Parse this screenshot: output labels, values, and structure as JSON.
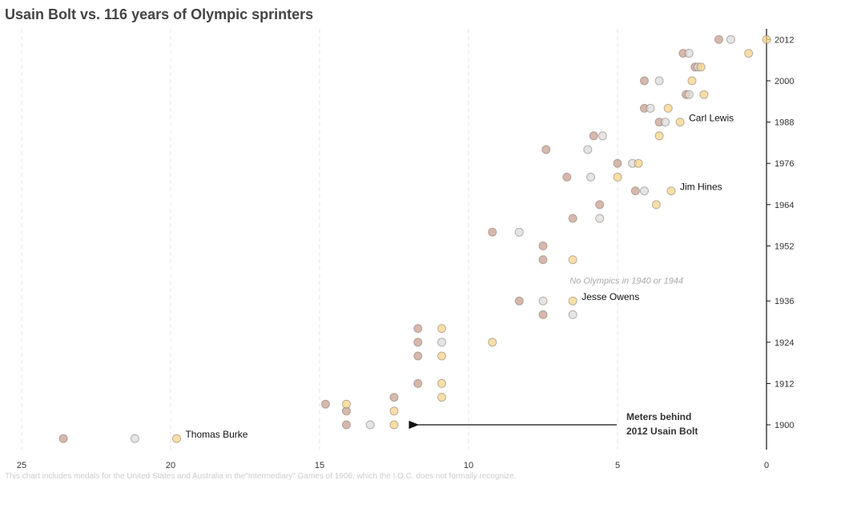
{
  "chart_data": {
    "type": "scatter",
    "title": "Usain Bolt vs. 116 years of Olympic sprinters",
    "xlabel": "",
    "ylabel": "",
    "x_axis": {
      "ticks": [
        25,
        20,
        15,
        10,
        5,
        0
      ],
      "range": [
        25.5,
        0
      ],
      "reversed": true
    },
    "y_axis": {
      "ticks": [
        1900,
        1912,
        1924,
        1936,
        1952,
        1964,
        1976,
        1988,
        2000,
        2012
      ],
      "range": [
        1894,
        2014
      ],
      "position": "right"
    },
    "grid": {
      "vertical": true,
      "horizontal": false
    },
    "colors": {
      "gold": "#f7d488",
      "silver": "#dcdcdc",
      "bronze": "#c9a090"
    },
    "points": [
      {
        "year": 1896,
        "meters": 23.6,
        "medal": "bronze"
      },
      {
        "year": 1896,
        "meters": 21.2,
        "medal": "silver"
      },
      {
        "year": 1896,
        "meters": 19.8,
        "medal": "gold"
      },
      {
        "year": 1900,
        "meters": 14.1,
        "medal": "bronze"
      },
      {
        "year": 1900,
        "meters": 13.3,
        "medal": "silver"
      },
      {
        "year": 1900,
        "meters": 12.5,
        "medal": "gold"
      },
      {
        "year": 1904,
        "meters": 14.1,
        "medal": "bronze"
      },
      {
        "year": 1904,
        "meters": 12.5,
        "medal": "gold"
      },
      {
        "year": 1906,
        "meters": 14.8,
        "medal": "bronze"
      },
      {
        "year": 1906,
        "meters": 14.1,
        "medal": "gold"
      },
      {
        "year": 1908,
        "meters": 12.5,
        "medal": "bronze"
      },
      {
        "year": 1908,
        "meters": 10.9,
        "medal": "gold"
      },
      {
        "year": 1912,
        "meters": 11.7,
        "medal": "bronze"
      },
      {
        "year": 1912,
        "meters": 10.9,
        "medal": "gold"
      },
      {
        "year": 1920,
        "meters": 11.7,
        "medal": "bronze"
      },
      {
        "year": 1920,
        "meters": 10.9,
        "medal": "gold"
      },
      {
        "year": 1924,
        "meters": 11.7,
        "medal": "bronze"
      },
      {
        "year": 1924,
        "meters": 10.9,
        "medal": "silver"
      },
      {
        "year": 1924,
        "meters": 9.2,
        "medal": "gold"
      },
      {
        "year": 1928,
        "meters": 11.7,
        "medal": "bronze"
      },
      {
        "year": 1928,
        "meters": 10.9,
        "medal": "gold"
      },
      {
        "year": 1932,
        "meters": 7.5,
        "medal": "bronze"
      },
      {
        "year": 1932,
        "meters": 6.5,
        "medal": "silver"
      },
      {
        "year": 1936,
        "meters": 8.3,
        "medal": "bronze"
      },
      {
        "year": 1936,
        "meters": 7.5,
        "medal": "silver"
      },
      {
        "year": 1936,
        "meters": 6.5,
        "medal": "gold"
      },
      {
        "year": 1948,
        "meters": 7.5,
        "medal": "bronze"
      },
      {
        "year": 1948,
        "meters": 6.5,
        "medal": "gold"
      },
      {
        "year": 1952,
        "meters": 7.5,
        "medal": "bronze"
      },
      {
        "year": 1956,
        "meters": 9.2,
        "medal": "bronze"
      },
      {
        "year": 1956,
        "meters": 8.3,
        "medal": "silver"
      },
      {
        "year": 1960,
        "meters": 6.5,
        "medal": "bronze"
      },
      {
        "year": 1960,
        "meters": 5.6,
        "medal": "silver"
      },
      {
        "year": 1964,
        "meters": 5.6,
        "medal": "bronze"
      },
      {
        "year": 1964,
        "meters": 3.7,
        "medal": "gold"
      },
      {
        "year": 1968,
        "meters": 4.4,
        "medal": "bronze"
      },
      {
        "year": 1968,
        "meters": 4.1,
        "medal": "silver"
      },
      {
        "year": 1968,
        "meters": 3.2,
        "medal": "gold"
      },
      {
        "year": 1972,
        "meters": 6.7,
        "medal": "bronze"
      },
      {
        "year": 1972,
        "meters": 5.9,
        "medal": "silver"
      },
      {
        "year": 1972,
        "meters": 5.0,
        "medal": "gold"
      },
      {
        "year": 1976,
        "meters": 5.0,
        "medal": "bronze"
      },
      {
        "year": 1976,
        "meters": 4.5,
        "medal": "silver"
      },
      {
        "year": 1976,
        "meters": 4.3,
        "medal": "gold"
      },
      {
        "year": 1980,
        "meters": 7.4,
        "medal": "bronze"
      },
      {
        "year": 1980,
        "meters": 6.0,
        "medal": "silver"
      },
      {
        "year": 1984,
        "meters": 5.8,
        "medal": "bronze"
      },
      {
        "year": 1984,
        "meters": 5.5,
        "medal": "silver"
      },
      {
        "year": 1984,
        "meters": 3.6,
        "medal": "gold"
      },
      {
        "year": 1988,
        "meters": 3.6,
        "medal": "bronze"
      },
      {
        "year": 1988,
        "meters": 3.4,
        "medal": "silver"
      },
      {
        "year": 1988,
        "meters": 2.9,
        "medal": "gold"
      },
      {
        "year": 1992,
        "meters": 4.1,
        "medal": "bronze"
      },
      {
        "year": 1992,
        "meters": 3.9,
        "medal": "silver"
      },
      {
        "year": 1992,
        "meters": 3.3,
        "medal": "gold"
      },
      {
        "year": 1996,
        "meters": 2.7,
        "medal": "bronze"
      },
      {
        "year": 1996,
        "meters": 2.6,
        "medal": "silver"
      },
      {
        "year": 1996,
        "meters": 2.1,
        "medal": "gold"
      },
      {
        "year": 2000,
        "meters": 4.1,
        "medal": "bronze"
      },
      {
        "year": 2000,
        "meters": 3.6,
        "medal": "silver"
      },
      {
        "year": 2000,
        "meters": 2.5,
        "medal": "gold"
      },
      {
        "year": 2004,
        "meters": 2.4,
        "medal": "bronze"
      },
      {
        "year": 2004,
        "meters": 2.3,
        "medal": "silver"
      },
      {
        "year": 2004,
        "meters": 2.2,
        "medal": "gold"
      },
      {
        "year": 2008,
        "meters": 2.8,
        "medal": "bronze"
      },
      {
        "year": 2008,
        "meters": 2.6,
        "medal": "silver"
      },
      {
        "year": 2008,
        "meters": 0.6,
        "medal": "gold"
      },
      {
        "year": 2012,
        "meters": 1.6,
        "medal": "bronze"
      },
      {
        "year": 2012,
        "meters": 1.2,
        "medal": "silver"
      },
      {
        "year": 2012,
        "meters": 0.0,
        "medal": "gold"
      }
    ],
    "annotations": [
      {
        "text": "Thomas Burke",
        "year": 1896,
        "meters": 19.8
      },
      {
        "text": "Jesse Owens",
        "year": 1936,
        "meters": 6.5
      },
      {
        "text": "Jim Hines",
        "year": 1968,
        "meters": 3.2
      },
      {
        "text": "Carl Lewis",
        "year": 1988,
        "meters": 2.9
      }
    ],
    "arrow_label": [
      "Meters behind",
      "2012 Usain Bolt"
    ],
    "gap_note": "No Olympics in 1940 or 1944",
    "footnote": "This chart includes medals for the United States and Australia in the\"Intermediary\" Games of 1906, which the I.O.C. does not formally recognize."
  }
}
